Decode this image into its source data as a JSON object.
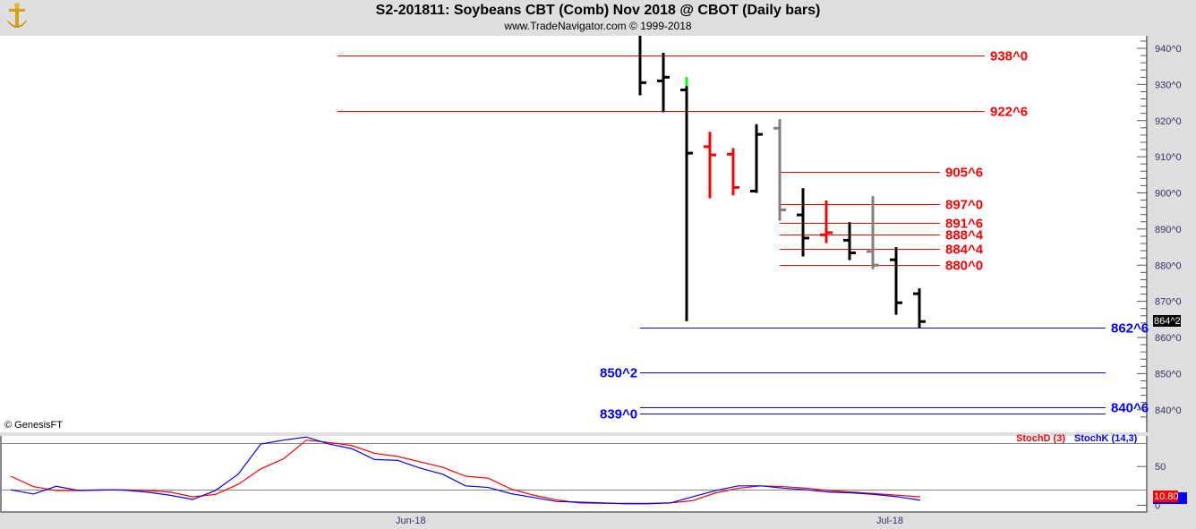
{
  "header": {
    "title": "S2-201811:  Soybeans CBT (Comb) Nov 2018 @ CBOT  (Daily bars)",
    "subtitle": "www.TradeNavigator.com © 1999-2018",
    "logo_icon": "gold-anchor-logo"
  },
  "copyright_label": "© GenesisFT",
  "colors": {
    "up": "#000000",
    "down_red": "#ff0000",
    "gray": "#808080",
    "green": "#00ff00",
    "level_red": "#ff0000",
    "level_blue": "#0000ff",
    "stoch_d": "#ff0000",
    "stoch_k": "#0000ff"
  },
  "chart_data": [
    {
      "type": "ohlc",
      "title": "S2-201811:  Soybeans CBT (Comb) Nov 2018 @ CBOT  (Daily bars)",
      "ylim": [
        835,
        945
      ],
      "y_tick_labels": [
        "940^0",
        "930^0",
        "920^0",
        "910^0",
        "900^0",
        "890^0",
        "880^0",
        "870^0",
        "860^0",
        "850^0",
        "840^0"
      ],
      "y_ticks": [
        940,
        930,
        920,
        910,
        900,
        890,
        880,
        870,
        860,
        850,
        840
      ],
      "last_price_label": "864^2",
      "bars": [
        {
          "o": null,
          "h": 944,
          "l": 927,
          "c": 930.5,
          "color": "black"
        },
        {
          "o": 931,
          "h": 938.8,
          "l": 922.3,
          "c": 932,
          "color": "black"
        },
        {
          "o": 928.5,
          "h": 932,
          "l": 864.5,
          "c": 911,
          "color": "black",
          "high_color": "green"
        },
        {
          "o": 912.8,
          "h": 916.9,
          "l": 898.5,
          "c": 910.5,
          "color": "red"
        },
        {
          "o": 910.7,
          "h": 912.4,
          "l": 899.3,
          "c": 901.5,
          "color": "red"
        },
        {
          "o": 900.5,
          "h": 919,
          "l": 900,
          "c": 916.2,
          "color": "black"
        },
        {
          "o": 917.9,
          "h": 920.4,
          "l": 892.3,
          "c": 895.3,
          "color": "gray"
        },
        {
          "o": 893.9,
          "h": 901.3,
          "l": 882.4,
          "c": 887.5,
          "color": "black"
        },
        {
          "o": 888.4,
          "h": 897.9,
          "l": 886.1,
          "c": 889,
          "color": "red"
        },
        {
          "o": 886.9,
          "h": 891.9,
          "l": 881.4,
          "c": 883.4,
          "color": "black"
        },
        {
          "o": 883.8,
          "h": 899.1,
          "l": 878.9,
          "c": 880,
          "color": "gray"
        },
        {
          "o": 881.5,
          "h": 885,
          "l": 866.3,
          "c": 869.6,
          "color": "black"
        },
        {
          "o": 872.1,
          "h": 873.6,
          "l": 862.7,
          "c": 864.4,
          "color": "black"
        }
      ],
      "levels": [
        {
          "label": "938^0",
          "value": 938,
          "color": "red",
          "span": "long",
          "label_side": "right"
        },
        {
          "label": "922^6",
          "value": 922.75,
          "color": "red",
          "span": "long",
          "label_side": "right"
        },
        {
          "label": "905^6",
          "value": 905.75,
          "color": "red",
          "span": "short",
          "label_side": "right"
        },
        {
          "label": "897^0",
          "value": 897,
          "color": "red",
          "span": "short",
          "label_side": "right"
        },
        {
          "label": "891^6",
          "value": 891.75,
          "color": "red",
          "span": "short",
          "label_side": "right"
        },
        {
          "label": "888^4",
          "value": 888.5,
          "color": "red",
          "span": "short",
          "label_side": "right"
        },
        {
          "label": "884^4",
          "value": 884.5,
          "color": "red",
          "span": "short",
          "label_side": "right"
        },
        {
          "label": "880^0",
          "value": 880,
          "color": "red",
          "span": "short",
          "label_side": "right"
        },
        {
          "label": "862^6",
          "value": 862.75,
          "color": "blue",
          "span": "wide",
          "label_side": "right"
        },
        {
          "label": "850^2",
          "value": 850.25,
          "color": "blue",
          "span": "wide",
          "label_side": "left"
        },
        {
          "label": "840^6",
          "value": 840.75,
          "color": "blue",
          "span": "wide",
          "label_side": "right"
        },
        {
          "label": "839^0",
          "value": 839,
          "color": "blue",
          "span": "wide",
          "label_side": "left"
        }
      ]
    },
    {
      "type": "line",
      "ylim": [
        0,
        100
      ],
      "y_tick_labels": [
        "50",
        "0"
      ],
      "reference_lines": [
        80,
        20
      ],
      "x_tick_labels": [
        "Jun-18",
        "Jul-18"
      ],
      "last_value_label": "10.80",
      "series": [
        {
          "name": "StochD (3)",
          "color": "#ff0000",
          "values": [
            37.5,
            24,
            19,
            19,
            19.5,
            20,
            19,
            17,
            11,
            14,
            27,
            47,
            60,
            84,
            81,
            77,
            67,
            63,
            56,
            49,
            37.5,
            35,
            21,
            13,
            7,
            3,
            2.5,
            2.5,
            2.5,
            3,
            6,
            16,
            22,
            25,
            24,
            22,
            19,
            17,
            15,
            13,
            10.8
          ]
        },
        {
          "name": "StochK (14,3)",
          "color": "#0000ff",
          "values": [
            20,
            14.5,
            24.5,
            19,
            20,
            19.5,
            17,
            13,
            7.5,
            19,
            40,
            79,
            84,
            88,
            79,
            73,
            59,
            58,
            48,
            40,
            25,
            23,
            15,
            10,
            5,
            4,
            3,
            2,
            2,
            3,
            11,
            19,
            25,
            25,
            22,
            20,
            17,
            16,
            14,
            11,
            6.5
          ]
        }
      ]
    }
  ]
}
